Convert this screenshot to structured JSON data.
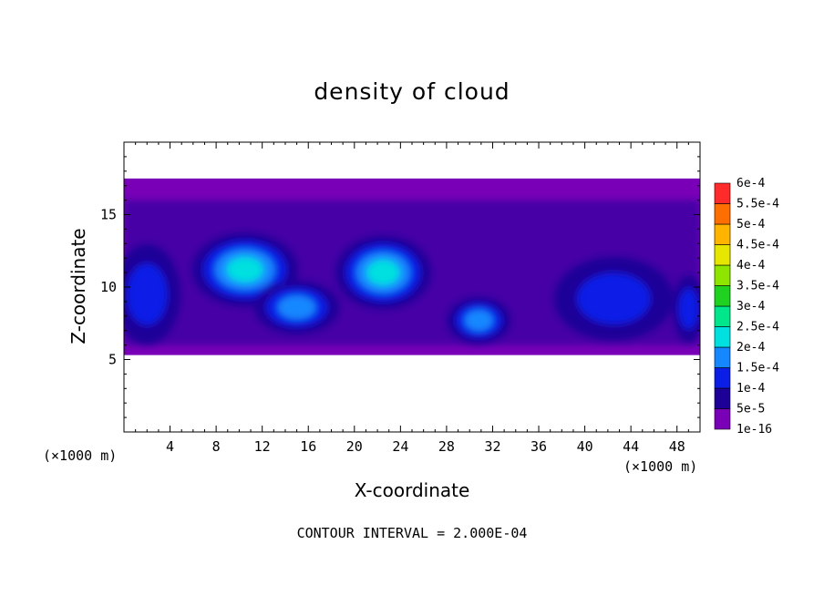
{
  "chart_data": {
    "type": "heatmap",
    "title": "density of cloud",
    "xlabel": "X-coordinate",
    "ylabel": "Z-coordinate",
    "x_unit_left": "(×1000 m)",
    "x_unit_right": "(×1000 m)",
    "footer": "CONTOUR INTERVAL = 2.000E-04",
    "xlim": [
      0,
      50
    ],
    "ylim": [
      0,
      20
    ],
    "xticks": [
      4,
      8,
      12,
      16,
      20,
      24,
      28,
      32,
      36,
      40,
      44,
      48
    ],
    "yticks": [
      5,
      10,
      15
    ],
    "cloud_layer": {
      "base": 5.3,
      "top": 17.5
    },
    "colorbar": {
      "levels": [
        "1e-16",
        "5e-5",
        "1e-4",
        "1.5e-4",
        "2e-4",
        "2.5e-4",
        "3e-4",
        "3.5e-4",
        "4e-4",
        "4.5e-4",
        "5e-4",
        "5.5e-4",
        "6e-4"
      ],
      "colors": [
        "#7a00b8",
        "#1c0098",
        "#0a1ee6",
        "#1688ff",
        "#00e0e0",
        "#00e68a",
        "#1fd21f",
        "#8ee600",
        "#e6e600",
        "#ffb400",
        "#ff6e00",
        "#ff2a2a",
        "#ff8a8a"
      ]
    },
    "cells": [
      {
        "x": 10.5,
        "z": 11.2,
        "rx": 4.0,
        "rz": 2.2,
        "level": 4
      },
      {
        "x": 22.5,
        "z": 11.0,
        "rx": 3.6,
        "rz": 2.2,
        "level": 4
      },
      {
        "x": 15.0,
        "z": 8.6,
        "rx": 3.2,
        "rz": 1.6,
        "level": 3
      },
      {
        "x": 30.8,
        "z": 7.7,
        "rx": 2.4,
        "rz": 1.4,
        "level": 3
      },
      {
        "x": 42.5,
        "z": 9.2,
        "rx": 4.5,
        "rz": 2.5,
        "level": 2
      },
      {
        "x": 2.0,
        "z": 9.5,
        "rx": 2.5,
        "rz": 3.0,
        "level": 2
      },
      {
        "x": 49.0,
        "z": 8.5,
        "rx": 1.2,
        "rz": 2.0,
        "level": 2
      }
    ]
  }
}
